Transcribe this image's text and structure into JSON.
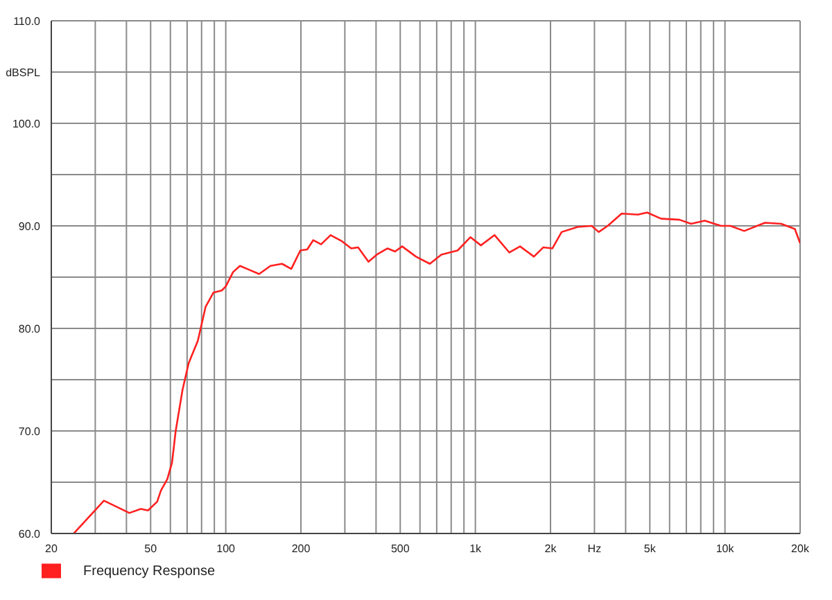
{
  "chart_data": {
    "type": "line",
    "log": "x",
    "grid": true,
    "legend": "bottom left",
    "marker": "none",
    "line_style": "solid",
    "xlim": [
      20,
      20000
    ],
    "xticks": [
      20,
      {
        "value": 30,
        "label": null
      },
      {
        "value": 40,
        "label": null
      },
      50,
      {
        "value": 60,
        "label": null
      },
      {
        "value": 70,
        "label": null
      },
      {
        "value": 80,
        "label": null
      },
      {
        "value": 90,
        "label": null
      },
      100,
      200,
      {
        "value": 300,
        "label": null
      },
      {
        "value": 400,
        "label": null
      },
      500,
      {
        "value": 600,
        "label": null
      },
      {
        "value": 700,
        "label": null
      },
      {
        "value": 800,
        "label": null
      },
      {
        "value": 900,
        "label": null
      },
      {
        "value": 1000,
        "label": "1k"
      },
      {
        "value": 2000,
        "label": "2k"
      },
      {
        "value": 3000,
        "label": "Hz"
      },
      {
        "value": 4000,
        "label": null
      },
      {
        "value": 5000,
        "label": "5k"
      },
      {
        "value": 6000,
        "label": null
      },
      {
        "value": 7000,
        "label": null
      },
      {
        "value": 8000,
        "label": null
      },
      {
        "value": 9000,
        "label": null
      },
      {
        "value": 10000,
        "label": "10k"
      },
      {
        "value": 20000,
        "label": "20k"
      }
    ],
    "ylim": [
      60,
      110
    ],
    "yticks": [
      {
        "value": 60,
        "label": "60.0"
      },
      {
        "value": 65,
        "label": null
      },
      {
        "value": 70,
        "label": "70.0"
      },
      {
        "value": 75,
        "label": null
      },
      {
        "value": 80,
        "label": "80.0"
      },
      {
        "value": 85,
        "label": null
      },
      {
        "value": 90,
        "label": "90.0"
      },
      {
        "value": 95,
        "label": null
      },
      {
        "value": 100,
        "label": "100.0"
      },
      {
        "value": 105,
        "label": "dBSPL"
      },
      {
        "value": 110,
        "label": "110.0"
      }
    ],
    "series": [
      {
        "name": "Frequency Response",
        "color": "#ff2020",
        "x": [
          24.6,
          32.5,
          41.1,
          45.7,
          48.8,
          53.1,
          55,
          58.3,
          60.9,
          63,
          67.1,
          71,
          77.3,
          83,
          89.3,
          96.4,
          100,
          107,
          114,
          124.6,
          136,
          151,
          168,
          183,
          199,
          212,
          224,
          241,
          263,
          292,
          318,
          339,
          373,
          403,
          444,
          477,
          509,
          578,
          657,
          731,
          849,
          955,
          1052,
          1194,
          1368,
          1510,
          1716,
          1870,
          2034,
          2216,
          2572,
          2924,
          3120,
          3390,
          3855,
          4477,
          4878,
          5546,
          6572,
          7310,
          8300,
          9640,
          10510,
          11940,
          14460,
          16790,
          19060,
          20000
        ],
        "values": [
          60,
          63.2,
          62,
          62.4,
          62.25,
          63.1,
          64.2,
          65.3,
          66.9,
          70,
          74,
          76.6,
          78.8,
          82.1,
          83.5,
          83.7,
          84.1,
          85.5,
          86.1,
          85.7,
          85.3,
          86.1,
          86.3,
          85.8,
          87.6,
          87.7,
          88.6,
          88.2,
          89.1,
          88.5,
          87.8,
          87.9,
          86.5,
          87.2,
          87.8,
          87.5,
          88,
          87,
          86.3,
          87.2,
          87.6,
          88.9,
          88.1,
          89.1,
          87.4,
          88,
          87,
          87.9,
          87.8,
          89.4,
          89.9,
          90,
          89.4,
          90,
          91.2,
          91.1,
          91.3,
          90.7,
          90.6,
          90.2,
          90.5,
          90,
          90,
          89.5,
          90.3,
          90.2,
          89.7,
          88.3
        ]
      }
    ]
  }
}
